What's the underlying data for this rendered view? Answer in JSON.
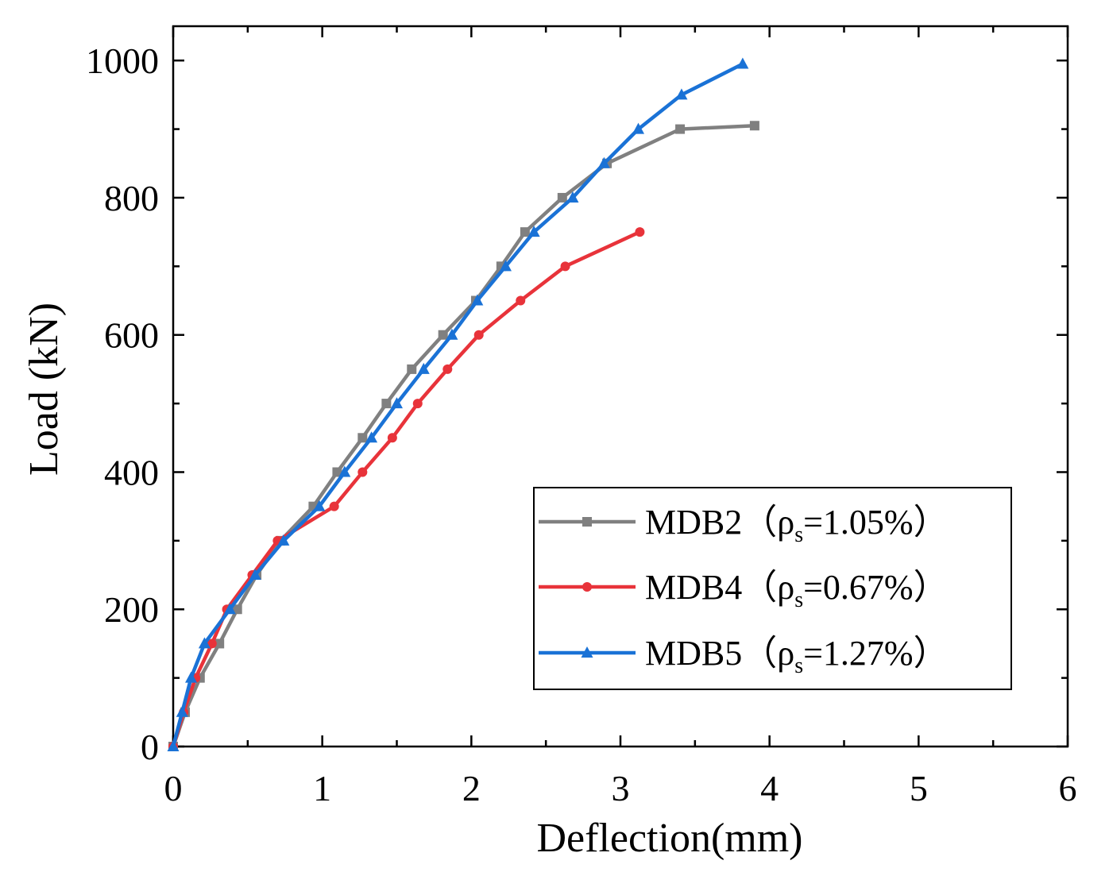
{
  "chart_data": {
    "type": "line",
    "title": "",
    "xlabel": "Deflection(mm)",
    "ylabel": "Load (kN)",
    "xlim": [
      0,
      6
    ],
    "ylim": [
      0,
      1050
    ],
    "xticks": [
      "0",
      "1",
      "2",
      "3",
      "4",
      "5",
      "6"
    ],
    "yticks": [
      "0",
      "200",
      "400",
      "600",
      "800",
      "1000"
    ],
    "grid": false,
    "legend_position": "bottom-right",
    "series": [
      {
        "name_main": "MDB2（ρ",
        "name_sub": "s",
        "name_rest": "=1.05%）",
        "color": "#808080",
        "marker": "square",
        "x": [
          0,
          0.08,
          0.18,
          0.31,
          0.43,
          0.56,
          0.72,
          0.94,
          1.1,
          1.27,
          1.43,
          1.6,
          1.81,
          2.03,
          2.2,
          2.36,
          2.61,
          2.91,
          3.4,
          3.9
        ],
        "y": [
          0,
          50,
          100,
          150,
          200,
          250,
          300,
          350,
          400,
          450,
          500,
          550,
          600,
          650,
          700,
          750,
          800,
          850,
          900,
          905
        ]
      },
      {
        "name_main": "MDB4（ρ",
        "name_sub": "s",
        "name_rest": "=0.67%）",
        "color": "#e8333a",
        "marker": "circle",
        "x": [
          0,
          0.07,
          0.15,
          0.26,
          0.36,
          0.53,
          0.7,
          1.08,
          1.27,
          1.47,
          1.64,
          1.84,
          2.05,
          2.33,
          2.63,
          3.13
        ],
        "y": [
          0,
          50,
          100,
          150,
          200,
          250,
          300,
          350,
          400,
          450,
          500,
          550,
          600,
          650,
          700,
          750
        ]
      },
      {
        "name_main": "MDB5（ρ",
        "name_sub": "s",
        "name_rest": "=1.27%）",
        "color": "#1a72d6",
        "marker": "triangle",
        "x": [
          0,
          0.06,
          0.12,
          0.21,
          0.38,
          0.55,
          0.74,
          0.98,
          1.15,
          1.33,
          1.5,
          1.68,
          1.87,
          2.04,
          2.23,
          2.42,
          2.68,
          2.89,
          3.12,
          3.41,
          3.82
        ],
        "y": [
          0,
          50,
          100,
          150,
          200,
          250,
          300,
          350,
          400,
          450,
          500,
          550,
          600,
          650,
          700,
          750,
          800,
          850,
          900,
          950,
          995
        ]
      }
    ]
  }
}
